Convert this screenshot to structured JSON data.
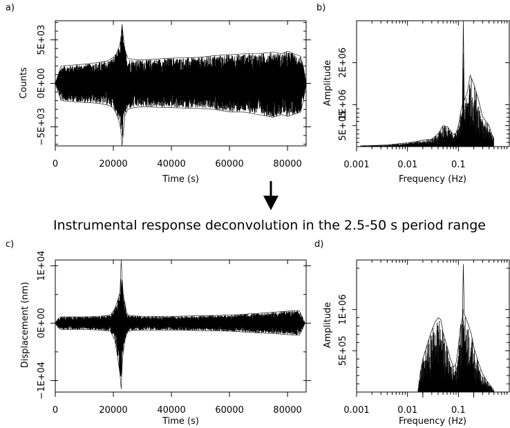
{
  "caption": "Instrumental response deconvolution in the 2.5-50 s period range",
  "colors": {
    "ink": "#000000",
    "background": "#ffffff"
  },
  "icons": {
    "arrow": "down-arrow-icon"
  },
  "chart_data": [
    {
      "panel": "a)",
      "type": "line",
      "title": "",
      "xlabel": "Time (s)",
      "ylabel": "Counts",
      "xlim": [
        0,
        86400
      ],
      "ylim": [
        -7200,
        7200
      ],
      "x_ticks": [
        0,
        20000,
        40000,
        60000,
        80000
      ],
      "x_tick_labels": [
        "0",
        "20000",
        "40000",
        "60000",
        "80000"
      ],
      "y_ticks": [
        -5000,
        0,
        5000
      ],
      "y_tick_labels": [
        "−5E+03",
        "0E+00",
        "5E+03"
      ],
      "y_minor_step": 1000,
      "grid": false,
      "envelope": {
        "x": [
          0,
          1000,
          2000,
          10000,
          15000,
          18000,
          20000,
          21000,
          22000,
          22500,
          23000,
          23500,
          24000,
          25000,
          27000,
          30000,
          40000,
          50000,
          55000,
          60000,
          65000,
          70000,
          75000,
          78000,
          80000,
          83000,
          84500,
          85500,
          86400
        ],
        "upper": [
          0,
          1000,
          2000,
          2200,
          2400,
          2600,
          3000,
          3400,
          4200,
          5000,
          6800,
          5200,
          3900,
          2900,
          2700,
          2700,
          2900,
          3000,
          3200,
          3300,
          3400,
          3400,
          3600,
          3400,
          3700,
          3300,
          3100,
          1800,
          0
        ],
        "lower": [
          0,
          -1000,
          -2000,
          -2200,
          -2300,
          -2500,
          -2800,
          -3500,
          -4400,
          -5200,
          -7200,
          -5500,
          -3700,
          -3000,
          -2800,
          -2700,
          -2800,
          -2900,
          -3000,
          -3300,
          -3300,
          -3600,
          -3900,
          -3600,
          -3800,
          -3500,
          -3300,
          -1900,
          0
        ]
      }
    },
    {
      "panel": "b)",
      "type": "area",
      "title": "",
      "xlabel": "Frequency (Hz)",
      "ylabel": "Amplitude",
      "x_scale": "log",
      "xlim": [
        0.001,
        1
      ],
      "ylim": [
        0,
        3000000
      ],
      "x_ticks": [
        0.001,
        0.01,
        0.1
      ],
      "x_tick_labels": [
        "0.001",
        "0.01",
        "0.1"
      ],
      "y_ticks": [
        500000,
        1000000,
        2000000
      ],
      "y_tick_labels": [
        "5E+05",
        "1E+06",
        "2E+06"
      ],
      "y_minor": [
        100000,
        200000,
        300000,
        400000,
        600000,
        700000,
        800000,
        900000,
        3000000
      ],
      "grid": false,
      "envelope": {
        "frequency": [
          0.0012,
          0.002,
          0.004,
          0.007,
          0.01,
          0.015,
          0.02,
          0.03,
          0.04,
          0.05,
          0.06,
          0.07,
          0.08,
          0.09,
          0.1,
          0.11,
          0.12,
          0.125,
          0.13,
          0.15,
          0.17,
          0.2,
          0.25,
          0.3,
          0.35,
          0.4,
          0.45,
          0.5
        ],
        "amplitude": [
          20000,
          25000,
          40000,
          70000,
          90000,
          120000,
          150000,
          180000,
          300000,
          500000,
          480000,
          380000,
          280000,
          330000,
          500000,
          800000,
          1000000,
          3000000,
          1100000,
          1300000,
          1700000,
          1500000,
          1100000,
          700000,
          600000,
          500000,
          300000,
          200000
        ]
      }
    },
    {
      "panel": "c)",
      "type": "line",
      "title": "",
      "xlabel": "Time (s)",
      "ylabel": "Displacement  (nm)",
      "xlim": [
        0,
        86400
      ],
      "ylim": [
        -12000,
        11000
      ],
      "x_ticks": [
        0,
        20000,
        40000,
        60000,
        80000
      ],
      "x_tick_labels": [
        "0",
        "20000",
        "40000",
        "60000",
        "80000"
      ],
      "y_ticks": [
        -10000,
        0,
        10000
      ],
      "y_tick_labels": [
        "−1E+04",
        "0E+00",
        "1E+04"
      ],
      "y_minor_step": 5000,
      "grid": false,
      "envelope": {
        "x": [
          0,
          1000,
          2000,
          10000,
          15000,
          19000,
          20500,
          21500,
          22300,
          22700,
          23000,
          23400,
          24000,
          24500,
          25000,
          26000,
          30000,
          40000,
          50000,
          60000,
          70000,
          75000,
          80000,
          84000,
          85000,
          86000
        ],
        "upper": [
          0,
          800,
          1100,
          1100,
          1200,
          1400,
          2500,
          4000,
          5500,
          11000,
          8000,
          5000,
          3500,
          2000,
          1500,
          1300,
          1200,
          1200,
          1300,
          1400,
          1700,
          1900,
          2100,
          2200,
          1200,
          0
        ],
        "lower": [
          0,
          -800,
          -1100,
          -1100,
          -1200,
          -1400,
          -3000,
          -6000,
          -9000,
          -11500,
          -7500,
          -5000,
          -3000,
          -2000,
          -1500,
          -1300,
          -1200,
          -1200,
          -1300,
          -1400,
          -1700,
          -1800,
          -2000,
          -2100,
          -1200,
          0
        ]
      }
    },
    {
      "panel": "d)",
      "type": "area",
      "title": "",
      "xlabel": "Frequency (Hz)",
      "ylabel": "Amplitude",
      "x_scale": "log",
      "xlim": [
        0.001,
        1
      ],
      "ylim": [
        0,
        1600000
      ],
      "x_ticks": [
        0.001,
        0.01,
        0.1
      ],
      "x_tick_labels": [
        "0.001",
        "0.01",
        "0.1"
      ],
      "extra_x_ticks": [
        0.02,
        0.2
      ],
      "y_ticks": [
        500000,
        1000000
      ],
      "y_tick_labels": [
        "5E+05",
        "1E+06"
      ],
      "y_minor": [
        100000,
        200000,
        300000,
        400000,
        600000,
        700000,
        800000,
        900000,
        1500000
      ],
      "grid": false,
      "envelope": {
        "frequency": [
          0.016,
          0.018,
          0.02,
          0.025,
          0.03,
          0.035,
          0.04,
          0.045,
          0.05,
          0.06,
          0.07,
          0.08,
          0.09,
          0.1,
          0.11,
          0.12,
          0.125,
          0.13,
          0.15,
          0.18,
          0.2,
          0.25,
          0.3,
          0.35,
          0.4,
          0.45,
          0.5
        ],
        "amplitude": [
          10000,
          250000,
          400000,
          600000,
          750000,
          850000,
          900000,
          880000,
          720000,
          550000,
          400000,
          300000,
          350000,
          550000,
          800000,
          900000,
          1550000,
          950000,
          850000,
          700000,
          550000,
          350000,
          220000,
          150000,
          100000,
          60000,
          20000
        ]
      }
    }
  ]
}
